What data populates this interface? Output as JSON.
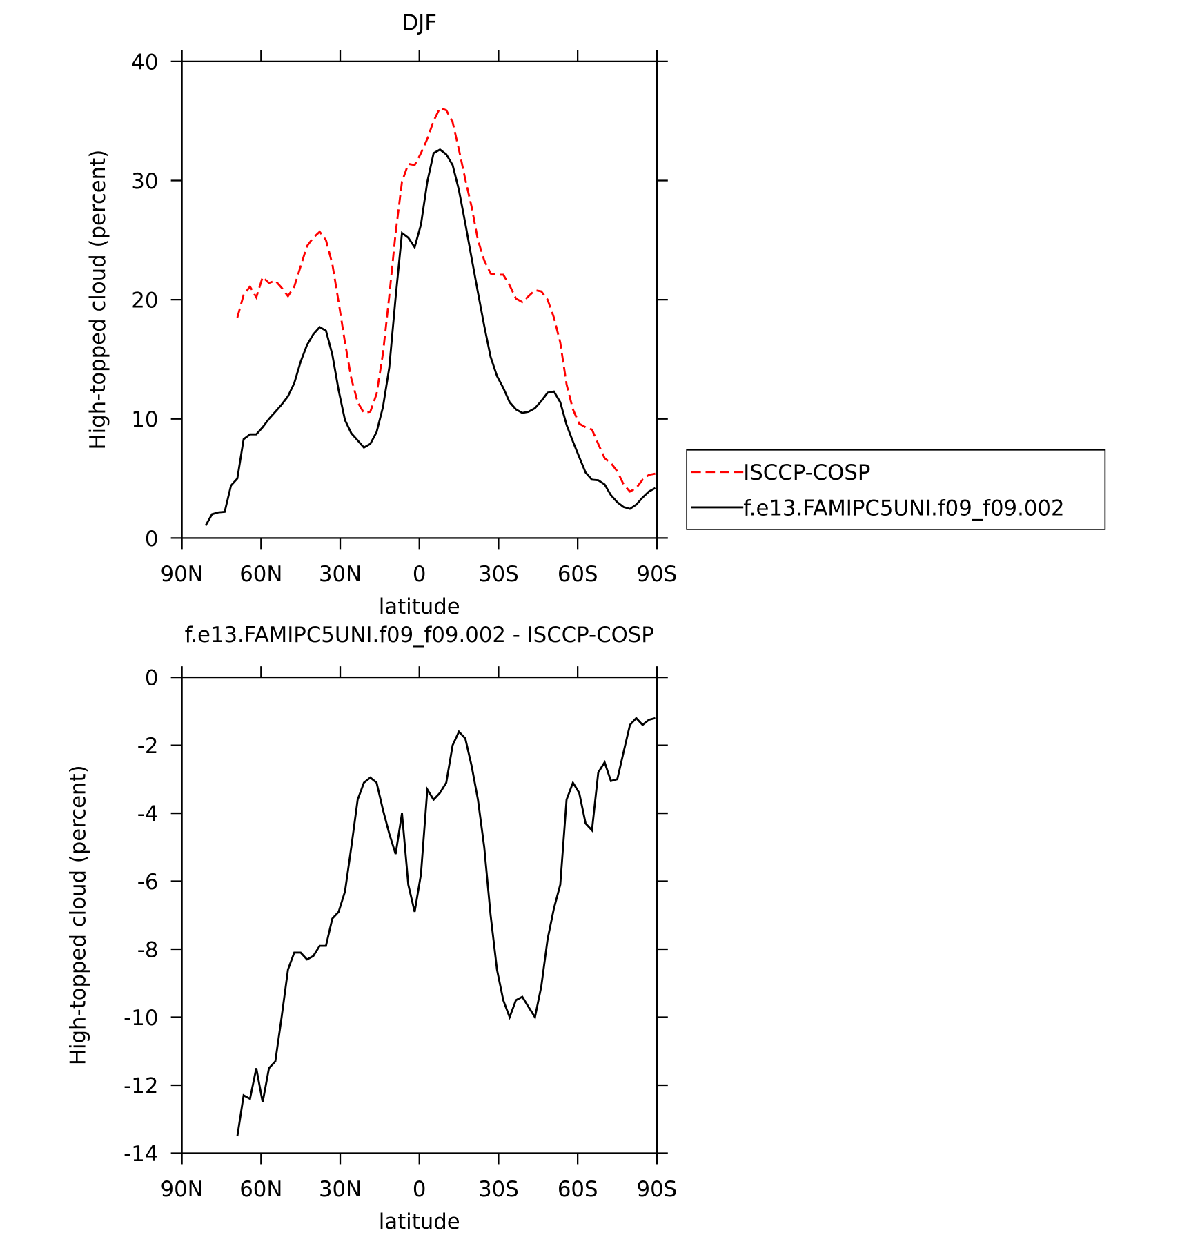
{
  "chart_data": [
    {
      "type": "line",
      "title": "DJF",
      "xlabel": "latitude",
      "ylabel": "High-topped cloud (percent)",
      "x": [
        81,
        78.6,
        76.2,
        73.8,
        71.4,
        69,
        66.6,
        64.2,
        61.8,
        59.4,
        57,
        54.6,
        52.2,
        49.8,
        47.4,
        45,
        42.6,
        40.2,
        37.8,
        35.4,
        33,
        30.6,
        28.2,
        25.8,
        23.4,
        21,
        18.6,
        16.2,
        13.8,
        11.4,
        9,
        6.6,
        4.2,
        1.8,
        -0.6,
        -3,
        -5.4,
        -7.8,
        -10.2,
        -12.6,
        -15,
        -17.4,
        -19.8,
        -22.2,
        -24.6,
        -27,
        -29.4,
        -31.8,
        -34.2,
        -36.6,
        -39,
        -41.4,
        -43.8,
        -46.2,
        -48.6,
        -51,
        -53.4,
        -55.8,
        -58.2,
        -60.6,
        -63,
        -65.4,
        -67.8,
        -70.2,
        -72.6,
        -75,
        -77.4,
        -79.8,
        -82.2,
        -84.6,
        -87,
        -89.4
      ],
      "series": [
        {
          "name": "ISCCP-COSP",
          "color": "#ff0000",
          "dash": true,
          "values": [
            null,
            null,
            null,
            null,
            null,
            18.5,
            20.4,
            21.1,
            20.2,
            21.9,
            21.4,
            21.6,
            21.0,
            20.3,
            21.1,
            22.8,
            24.5,
            25.2,
            25.7,
            25.0,
            23.0,
            19.8,
            16.4,
            13.4,
            11.4,
            10.5,
            10.6,
            12.1,
            15.5,
            20.3,
            25.6,
            29.9,
            31.4,
            31.3,
            32.3,
            33.5,
            35.0,
            36.1,
            35.9,
            34.9,
            32.6,
            30.1,
            27.8,
            25.0,
            23.3,
            22.2,
            22.1,
            22.1,
            21.2,
            20.1,
            19.8,
            20.3,
            20.8,
            20.7,
            20.0,
            18.5,
            16.4,
            12.9,
            10.8,
            9.6,
            9.3,
            9.1,
            7.9,
            6.7,
            6.3,
            5.6,
            4.5,
            3.9,
            4.2,
            4.9,
            5.3,
            5.4
          ]
        },
        {
          "name": "f.e13.FAMIPC5UNI.f09_f09.002",
          "color": "#000000",
          "dash": false,
          "values": [
            1.05,
            2.0,
            2.15,
            2.2,
            4.4,
            5.0,
            8.3,
            8.7,
            8.7,
            9.3,
            10.0,
            10.6,
            11.2,
            11.9,
            13.0,
            14.8,
            16.2,
            17.1,
            17.7,
            17.4,
            15.4,
            12.4,
            9.9,
            8.8,
            8.2,
            7.6,
            7.9,
            8.9,
            11.0,
            14.3,
            20.2,
            25.6,
            25.2,
            24.4,
            26.3,
            29.9,
            32.3,
            32.6,
            32.2,
            31.3,
            29.2,
            26.4,
            23.5,
            20.6,
            17.8,
            15.2,
            13.6,
            12.6,
            11.4,
            10.8,
            10.5,
            10.6,
            10.9,
            11.5,
            12.2,
            12.3,
            11.4,
            9.5,
            8.1,
            6.8,
            5.5,
            4.9,
            4.85,
            4.5,
            3.6,
            3.0,
            2.6,
            2.45,
            2.8,
            3.4,
            3.9,
            4.2
          ]
        }
      ],
      "xlim": [
        90,
        -90
      ],
      "xticks": [
        {
          "value": 90,
          "label": "90N"
        },
        {
          "value": 60,
          "label": "60N"
        },
        {
          "value": 30,
          "label": "30N"
        },
        0,
        {
          "value": -30,
          "label": "30S"
        },
        {
          "value": -60,
          "label": "60S"
        },
        {
          "value": -90,
          "label": "90S"
        }
      ],
      "ylim": [
        0,
        40
      ],
      "yticks": [
        0,
        10,
        20,
        30,
        40
      ],
      "legend": "right"
    },
    {
      "type": "line",
      "title": "f.e13.FAMIPC5UNI.f09_f09.002 - ISCCP-COSP",
      "xlabel": "latitude",
      "ylabel": "High-topped cloud (percent)",
      "x": [
        81,
        78.6,
        76.2,
        73.8,
        71.4,
        69,
        66.6,
        64.2,
        61.8,
        59.4,
        57,
        54.6,
        52.2,
        49.8,
        47.4,
        45,
        42.6,
        40.2,
        37.8,
        35.4,
        33,
        30.6,
        28.2,
        25.8,
        23.4,
        21,
        18.6,
        16.2,
        13.8,
        11.4,
        9,
        6.6,
        4.2,
        1.8,
        -0.6,
        -3,
        -5.4,
        -7.8,
        -10.2,
        -12.6,
        -15,
        -17.4,
        -19.8,
        -22.2,
        -24.6,
        -27,
        -29.4,
        -31.8,
        -34.2,
        -36.6,
        -39,
        -41.4,
        -43.8,
        -46.2,
        -48.6,
        -51,
        -53.4,
        -55.8,
        -58.2,
        -60.6,
        -63,
        -65.4,
        -67.8,
        -70.2,
        -72.6,
        -75,
        -77.4,
        -79.8,
        -82.2,
        -84.6,
        -87,
        -89.4
      ],
      "series": [
        {
          "color": "#000000",
          "dash": false,
          "values": [
            null,
            null,
            null,
            null,
            null,
            -13.5,
            -12.3,
            -12.4,
            -11.5,
            -12.5,
            -11.5,
            -11.3,
            -10.0,
            -8.6,
            -8.1,
            -8.1,
            -8.3,
            -8.2,
            -7.9,
            -7.9,
            -7.1,
            -6.9,
            -6.3,
            -5.0,
            -3.6,
            -3.1,
            -2.95,
            -3.1,
            -3.9,
            -4.6,
            -5.2,
            -4.0,
            -6.1,
            -6.9,
            -5.8,
            -3.3,
            -3.6,
            -3.4,
            -3.1,
            -2.0,
            -1.6,
            -1.8,
            -2.6,
            -3.6,
            -5.0,
            -7.0,
            -8.6,
            -9.5,
            -10.0,
            -9.5,
            -9.4,
            -9.7,
            -10.0,
            -9.1,
            -7.7,
            -6.8,
            -6.1,
            -3.6,
            -3.1,
            -3.4,
            -4.3,
            -4.5,
            -2.8,
            -2.5,
            -3.05,
            -3.0,
            -2.2,
            -1.4,
            -1.2,
            -1.4,
            -1.25,
            -1.2
          ]
        }
      ],
      "xlim": [
        90,
        -90
      ],
      "xticks": [
        {
          "value": 90,
          "label": "90N"
        },
        {
          "value": 60,
          "label": "60N"
        },
        {
          "value": 30,
          "label": "30N"
        },
        0,
        {
          "value": -30,
          "label": "30S"
        },
        {
          "value": -60,
          "label": "60S"
        },
        {
          "value": -90,
          "label": "90S"
        }
      ],
      "ylim": [
        -14,
        0
      ],
      "yticks": [
        -14,
        -12,
        -10,
        -8,
        -6,
        -4,
        -2,
        0
      ]
    }
  ]
}
